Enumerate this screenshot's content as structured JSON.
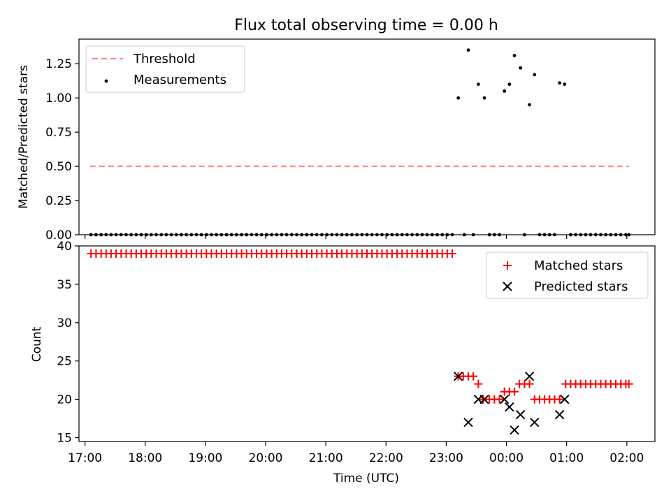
{
  "chart_data": [
    {
      "type": "scatter",
      "title": "Flux total observing time = 0.00 h",
      "xlabel": "",
      "ylabel": "Matched/Predicted stars",
      "ylim": [
        0,
        1.43
      ],
      "yticks": [
        "0.00",
        "0.25",
        "0.50",
        "0.75",
        "1.00",
        "1.25"
      ],
      "xlim": [
        "16:54",
        "02:28"
      ],
      "legend_position": "top-left",
      "series": [
        {
          "name": "Threshold",
          "kind": "dashed-line",
          "color": "#ff8080",
          "points": [
            {
              "x": "17:05",
              "y": 0.5
            },
            {
              "x": "02:02",
              "y": 0.5
            }
          ]
        },
        {
          "name": "Measurements",
          "kind": "dots",
          "color": "#000000",
          "points": [
            {
              "x": "17:06",
              "y": 0
            },
            {
              "x": "17:11",
              "y": 0
            },
            {
              "x": "17:16",
              "y": 0
            },
            {
              "x": "17:21",
              "y": 0
            },
            {
              "x": "17:26",
              "y": 0
            },
            {
              "x": "17:31",
              "y": 0
            },
            {
              "x": "17:36",
              "y": 0
            },
            {
              "x": "17:41",
              "y": 0
            },
            {
              "x": "17:46",
              "y": 0
            },
            {
              "x": "17:51",
              "y": 0
            },
            {
              "x": "17:56",
              "y": 0
            },
            {
              "x": "18:01",
              "y": 0
            },
            {
              "x": "18:06",
              "y": 0
            },
            {
              "x": "18:11",
              "y": 0
            },
            {
              "x": "18:16",
              "y": 0
            },
            {
              "x": "18:21",
              "y": 0
            },
            {
              "x": "18:26",
              "y": 0
            },
            {
              "x": "18:31",
              "y": 0
            },
            {
              "x": "18:36",
              "y": 0
            },
            {
              "x": "18:41",
              "y": 0
            },
            {
              "x": "18:46",
              "y": 0
            },
            {
              "x": "18:51",
              "y": 0
            },
            {
              "x": "18:56",
              "y": 0
            },
            {
              "x": "19:01",
              "y": 0
            },
            {
              "x": "19:06",
              "y": 0
            },
            {
              "x": "19:11",
              "y": 0
            },
            {
              "x": "19:16",
              "y": 0
            },
            {
              "x": "19:21",
              "y": 0
            },
            {
              "x": "19:26",
              "y": 0
            },
            {
              "x": "19:31",
              "y": 0
            },
            {
              "x": "19:36",
              "y": 0
            },
            {
              "x": "19:41",
              "y": 0
            },
            {
              "x": "19:46",
              "y": 0
            },
            {
              "x": "19:51",
              "y": 0
            },
            {
              "x": "19:56",
              "y": 0
            },
            {
              "x": "20:01",
              "y": 0
            },
            {
              "x": "20:06",
              "y": 0
            },
            {
              "x": "20:11",
              "y": 0
            },
            {
              "x": "20:16",
              "y": 0
            },
            {
              "x": "20:21",
              "y": 0
            },
            {
              "x": "20:26",
              "y": 0
            },
            {
              "x": "20:31",
              "y": 0
            },
            {
              "x": "20:36",
              "y": 0
            },
            {
              "x": "20:41",
              "y": 0
            },
            {
              "x": "20:46",
              "y": 0
            },
            {
              "x": "20:51",
              "y": 0
            },
            {
              "x": "20:56",
              "y": 0
            },
            {
              "x": "21:01",
              "y": 0
            },
            {
              "x": "21:06",
              "y": 0
            },
            {
              "x": "21:11",
              "y": 0
            },
            {
              "x": "21:16",
              "y": 0
            },
            {
              "x": "21:21",
              "y": 0
            },
            {
              "x": "21:26",
              "y": 0
            },
            {
              "x": "21:31",
              "y": 0
            },
            {
              "x": "21:36",
              "y": 0
            },
            {
              "x": "21:41",
              "y": 0
            },
            {
              "x": "21:46",
              "y": 0
            },
            {
              "x": "21:51",
              "y": 0
            },
            {
              "x": "21:56",
              "y": 0
            },
            {
              "x": "22:01",
              "y": 0
            },
            {
              "x": "22:06",
              "y": 0
            },
            {
              "x": "22:11",
              "y": 0
            },
            {
              "x": "22:16",
              "y": 0
            },
            {
              "x": "22:21",
              "y": 0
            },
            {
              "x": "22:26",
              "y": 0
            },
            {
              "x": "22:31",
              "y": 0
            },
            {
              "x": "22:36",
              "y": 0
            },
            {
              "x": "22:41",
              "y": 0
            },
            {
              "x": "22:46",
              "y": 0
            },
            {
              "x": "22:51",
              "y": 0
            },
            {
              "x": "22:56",
              "y": 0
            },
            {
              "x": "23:01",
              "y": 0
            },
            {
              "x": "23:06",
              "y": 0
            },
            {
              "x": "23:12",
              "y": 1.0
            },
            {
              "x": "23:18",
              "y": 0
            },
            {
              "x": "23:22",
              "y": 1.35
            },
            {
              "x": "23:27",
              "y": 0
            },
            {
              "x": "23:32",
              "y": 1.1
            },
            {
              "x": "23:38",
              "y": 1.0
            },
            {
              "x": "23:43",
              "y": 0
            },
            {
              "x": "23:48",
              "y": 0
            },
            {
              "x": "23:53",
              "y": 0
            },
            {
              "x": "23:58",
              "y": 1.05
            },
            {
              "x": "00:03",
              "y": 1.1
            },
            {
              "x": "00:08",
              "y": 1.31
            },
            {
              "x": "00:14",
              "y": 1.22
            },
            {
              "x": "00:18",
              "y": 0
            },
            {
              "x": "00:23",
              "y": 0.95
            },
            {
              "x": "00:28",
              "y": 1.17
            },
            {
              "x": "00:33",
              "y": 0
            },
            {
              "x": "00:38",
              "y": 0
            },
            {
              "x": "00:43",
              "y": 0
            },
            {
              "x": "00:48",
              "y": 0
            },
            {
              "x": "00:53",
              "y": 1.11
            },
            {
              "x": "00:58",
              "y": 1.1
            },
            {
              "x": "01:04",
              "y": 0
            },
            {
              "x": "01:09",
              "y": 0
            },
            {
              "x": "01:14",
              "y": 0
            },
            {
              "x": "01:19",
              "y": 0
            },
            {
              "x": "01:24",
              "y": 0
            },
            {
              "x": "01:29",
              "y": 0
            },
            {
              "x": "01:34",
              "y": 0
            },
            {
              "x": "01:39",
              "y": 0
            },
            {
              "x": "01:44",
              "y": 0
            },
            {
              "x": "01:49",
              "y": 0
            },
            {
              "x": "01:54",
              "y": 0
            },
            {
              "x": "01:59",
              "y": 0
            },
            {
              "x": "02:02",
              "y": 0
            }
          ]
        }
      ]
    },
    {
      "type": "scatter",
      "title": "",
      "xlabel": "Time (UTC)",
      "ylabel": "Count",
      "ylim": [
        14.5,
        40.0
      ],
      "yticks": [
        "15",
        "20",
        "25",
        "30",
        "35",
        "40"
      ],
      "xlim": [
        "16:54",
        "02:28"
      ],
      "xticks": [
        "17:00",
        "18:00",
        "19:00",
        "20:00",
        "21:00",
        "22:00",
        "23:00",
        "00:00",
        "01:00",
        "02:00"
      ],
      "legend_position": "top-right",
      "series": [
        {
          "name": "Matched stars",
          "kind": "plus",
          "color": "#ff0000",
          "points": [
            {
              "x": "17:06",
              "y": 39
            },
            {
              "x": "17:11",
              "y": 39
            },
            {
              "x": "17:16",
              "y": 39
            },
            {
              "x": "17:21",
              "y": 39
            },
            {
              "x": "17:26",
              "y": 39
            },
            {
              "x": "17:31",
              "y": 39
            },
            {
              "x": "17:36",
              "y": 39
            },
            {
              "x": "17:41",
              "y": 39
            },
            {
              "x": "17:46",
              "y": 39
            },
            {
              "x": "17:51",
              "y": 39
            },
            {
              "x": "17:56",
              "y": 39
            },
            {
              "x": "18:01",
              "y": 39
            },
            {
              "x": "18:06",
              "y": 39
            },
            {
              "x": "18:11",
              "y": 39
            },
            {
              "x": "18:16",
              "y": 39
            },
            {
              "x": "18:21",
              "y": 39
            },
            {
              "x": "18:26",
              "y": 39
            },
            {
              "x": "18:31",
              "y": 39
            },
            {
              "x": "18:36",
              "y": 39
            },
            {
              "x": "18:41",
              "y": 39
            },
            {
              "x": "18:46",
              "y": 39
            },
            {
              "x": "18:51",
              "y": 39
            },
            {
              "x": "18:56",
              "y": 39
            },
            {
              "x": "19:01",
              "y": 39
            },
            {
              "x": "19:06",
              "y": 39
            },
            {
              "x": "19:11",
              "y": 39
            },
            {
              "x": "19:16",
              "y": 39
            },
            {
              "x": "19:21",
              "y": 39
            },
            {
              "x": "19:26",
              "y": 39
            },
            {
              "x": "19:31",
              "y": 39
            },
            {
              "x": "19:36",
              "y": 39
            },
            {
              "x": "19:41",
              "y": 39
            },
            {
              "x": "19:46",
              "y": 39
            },
            {
              "x": "19:51",
              "y": 39
            },
            {
              "x": "19:56",
              "y": 39
            },
            {
              "x": "20:01",
              "y": 39
            },
            {
              "x": "20:06",
              "y": 39
            },
            {
              "x": "20:11",
              "y": 39
            },
            {
              "x": "20:16",
              "y": 39
            },
            {
              "x": "20:21",
              "y": 39
            },
            {
              "x": "20:26",
              "y": 39
            },
            {
              "x": "20:31",
              "y": 39
            },
            {
              "x": "20:36",
              "y": 39
            },
            {
              "x": "20:41",
              "y": 39
            },
            {
              "x": "20:46",
              "y": 39
            },
            {
              "x": "20:51",
              "y": 39
            },
            {
              "x": "20:56",
              "y": 39
            },
            {
              "x": "21:01",
              "y": 39
            },
            {
              "x": "21:06",
              "y": 39
            },
            {
              "x": "21:11",
              "y": 39
            },
            {
              "x": "21:16",
              "y": 39
            },
            {
              "x": "21:21",
              "y": 39
            },
            {
              "x": "21:26",
              "y": 39
            },
            {
              "x": "21:31",
              "y": 39
            },
            {
              "x": "21:36",
              "y": 39
            },
            {
              "x": "21:41",
              "y": 39
            },
            {
              "x": "21:46",
              "y": 39
            },
            {
              "x": "21:51",
              "y": 39
            },
            {
              "x": "21:56",
              "y": 39
            },
            {
              "x": "22:01",
              "y": 39
            },
            {
              "x": "22:06",
              "y": 39
            },
            {
              "x": "22:11",
              "y": 39
            },
            {
              "x": "22:16",
              "y": 39
            },
            {
              "x": "22:21",
              "y": 39
            },
            {
              "x": "22:26",
              "y": 39
            },
            {
              "x": "22:31",
              "y": 39
            },
            {
              "x": "22:36",
              "y": 39
            },
            {
              "x": "22:41",
              "y": 39
            },
            {
              "x": "22:46",
              "y": 39
            },
            {
              "x": "22:51",
              "y": 39
            },
            {
              "x": "22:56",
              "y": 39
            },
            {
              "x": "23:01",
              "y": 39
            },
            {
              "x": "23:06",
              "y": 39
            },
            {
              "x": "23:12",
              "y": 23
            },
            {
              "x": "23:17",
              "y": 23
            },
            {
              "x": "23:22",
              "y": 23
            },
            {
              "x": "23:27",
              "y": 23
            },
            {
              "x": "23:32",
              "y": 22
            },
            {
              "x": "23:37",
              "y": 20
            },
            {
              "x": "23:43",
              "y": 20
            },
            {
              "x": "23:48",
              "y": 20
            },
            {
              "x": "23:53",
              "y": 20
            },
            {
              "x": "23:58",
              "y": 21
            },
            {
              "x": "00:03",
              "y": 21
            },
            {
              "x": "00:08",
              "y": 21
            },
            {
              "x": "00:13",
              "y": 22
            },
            {
              "x": "00:18",
              "y": 22
            },
            {
              "x": "00:23",
              "y": 22
            },
            {
              "x": "00:28",
              "y": 20
            },
            {
              "x": "00:33",
              "y": 20
            },
            {
              "x": "00:38",
              "y": 20
            },
            {
              "x": "00:43",
              "y": 20
            },
            {
              "x": "00:48",
              "y": 20
            },
            {
              "x": "00:53",
              "y": 20
            },
            {
              "x": "00:59",
              "y": 22
            },
            {
              "x": "01:04",
              "y": 22
            },
            {
              "x": "01:09",
              "y": 22
            },
            {
              "x": "01:14",
              "y": 22
            },
            {
              "x": "01:19",
              "y": 22
            },
            {
              "x": "01:24",
              "y": 22
            },
            {
              "x": "01:29",
              "y": 22
            },
            {
              "x": "01:34",
              "y": 22
            },
            {
              "x": "01:39",
              "y": 22
            },
            {
              "x": "01:44",
              "y": 22
            },
            {
              "x": "01:49",
              "y": 22
            },
            {
              "x": "01:54",
              "y": 22
            },
            {
              "x": "01:59",
              "y": 22
            },
            {
              "x": "02:02",
              "y": 22
            }
          ]
        },
        {
          "name": "Predicted stars",
          "kind": "x",
          "color": "#000000",
          "points": [
            {
              "x": "23:12",
              "y": 23
            },
            {
              "x": "23:22",
              "y": 17
            },
            {
              "x": "23:32",
              "y": 20
            },
            {
              "x": "23:38",
              "y": 20
            },
            {
              "x": "23:58",
              "y": 20
            },
            {
              "x": "00:03",
              "y": 19
            },
            {
              "x": "00:08",
              "y": 16
            },
            {
              "x": "00:14",
              "y": 18
            },
            {
              "x": "00:23",
              "y": 23
            },
            {
              "x": "00:28",
              "y": 17
            },
            {
              "x": "00:53",
              "y": 18
            },
            {
              "x": "00:58",
              "y": 20
            }
          ]
        }
      ]
    }
  ]
}
